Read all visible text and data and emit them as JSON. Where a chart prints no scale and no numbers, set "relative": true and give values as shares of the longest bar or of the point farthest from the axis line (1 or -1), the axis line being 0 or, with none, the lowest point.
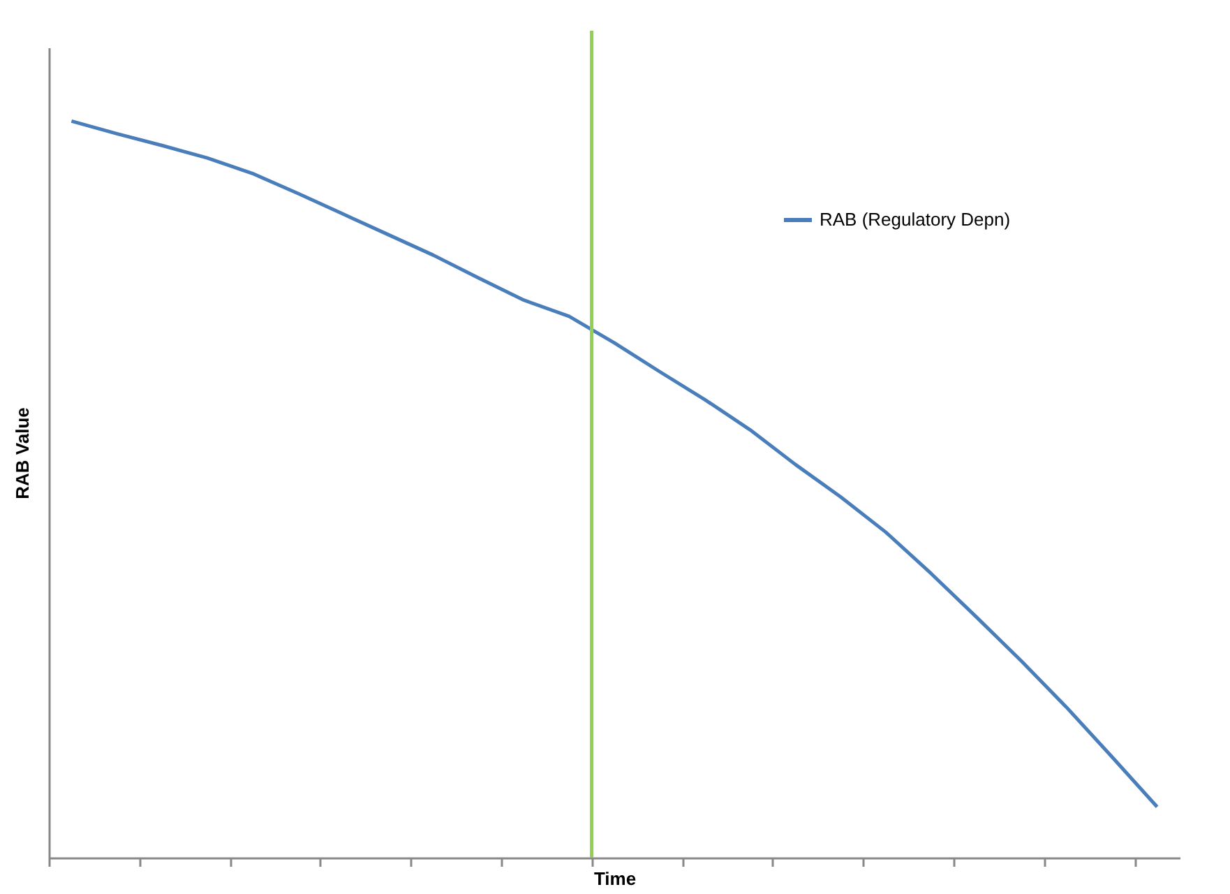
{
  "chart_data": {
    "type": "line",
    "relative": true,
    "xlabel": "Time",
    "ylabel": "RAB Value",
    "categories": [
      null,
      null,
      null,
      null,
      null,
      null,
      null,
      null,
      null,
      null,
      null,
      null,
      null,
      null,
      null,
      null,
      null,
      null,
      null,
      null,
      null,
      null,
      null,
      null,
      null
    ],
    "series": [
      {
        "name": "RAB (Regulatory Depn)",
        "color": "#4a7ebb",
        "values": [
          1.0,
          0.983,
          0.967,
          0.95,
          0.929,
          0.902,
          0.874,
          0.846,
          0.818,
          0.787,
          0.757,
          0.735,
          0.699,
          0.66,
          0.622,
          0.581,
          0.534,
          0.49,
          0.442,
          0.386,
          0.327,
          0.267,
          0.204,
          0.137,
          0.069
        ]
      }
    ],
    "legend": "top right"
  }
}
